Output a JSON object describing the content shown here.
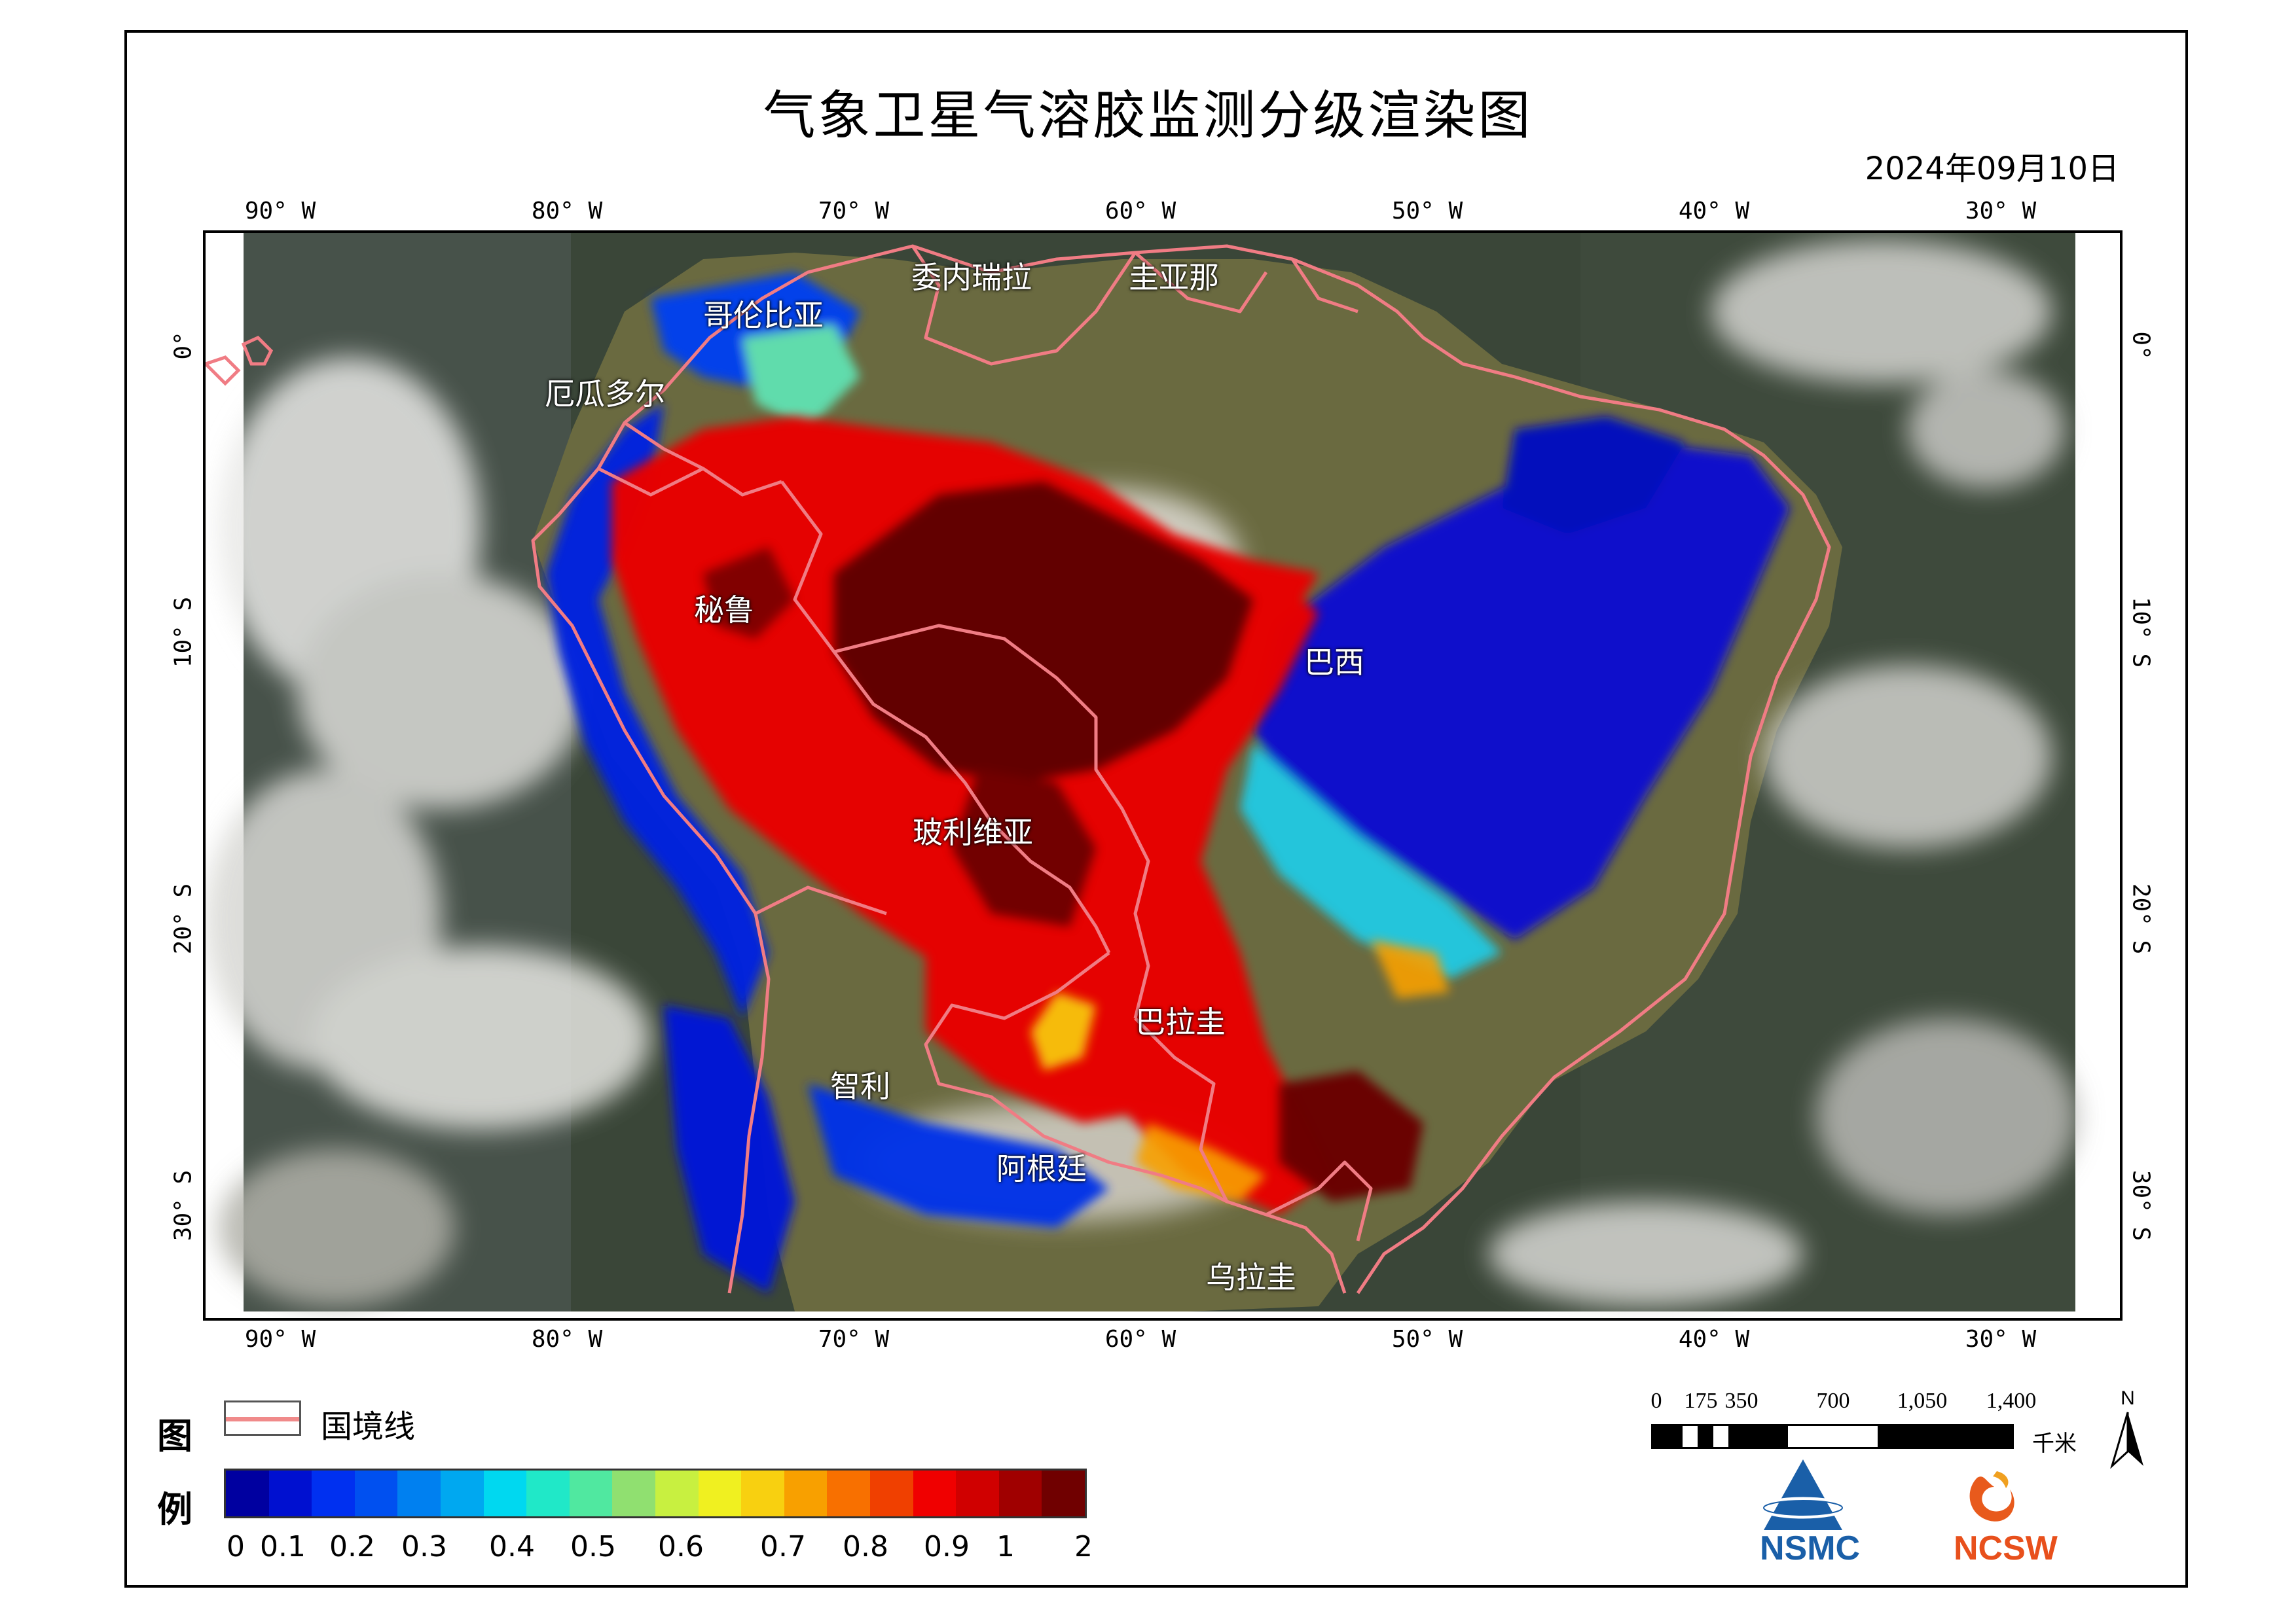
{
  "title": "气象卫星气溶胶监测分级渲染图",
  "date": "2024年09月10日",
  "map": {
    "ticks_top": [
      "90° W",
      "80° W",
      "70° W",
      "60° W",
      "50° W",
      "40° W",
      "30° W"
    ],
    "ticks_bottom": [
      "90° W",
      "80° W",
      "70° W",
      "60° W",
      "50° W",
      "40° W",
      "30° W"
    ],
    "ticks_left": [
      "0°",
      "10° S",
      "20° S",
      "30° S"
    ],
    "ticks_right": [
      "0°",
      "10° S",
      "20° S",
      "30° S"
    ],
    "countries": [
      "委内瑞拉",
      "圭亚那",
      "哥伦比亚",
      "厄瓜多尔",
      "秘鲁",
      "巴西",
      "玻利维亚",
      "巴拉圭",
      "智利",
      "阿根廷",
      "乌拉圭"
    ]
  },
  "legend": {
    "title_top": "图",
    "title_bottom": "例",
    "border_label": "国境线",
    "border_color": "#f08a8a",
    "colorbar_colors": [
      "#0000a0",
      "#0010d0",
      "#0030f0",
      "#0050f0",
      "#0080f0",
      "#00a8f0",
      "#00d8f0",
      "#20e8c8",
      "#50e8a0",
      "#90e070",
      "#c8f040",
      "#f0f020",
      "#f8d010",
      "#f8a000",
      "#f87000",
      "#f04000",
      "#f00000",
      "#d00000",
      "#a00000",
      "#700000"
    ],
    "colorbar_labels": [
      "0",
      "0.1",
      "0.2",
      "0.3",
      "0.4",
      "0.5",
      "0.6",
      "0.7",
      "0.8",
      "0.9",
      "1",
      "2"
    ]
  },
  "scalebar": {
    "labels": [
      "0",
      "175",
      "350",
      "700",
      "1,050",
      "1,400"
    ],
    "unit": "千米"
  },
  "north_label": "N",
  "logos": {
    "nsmc": "NSMC",
    "ncsw": "NCSW"
  }
}
